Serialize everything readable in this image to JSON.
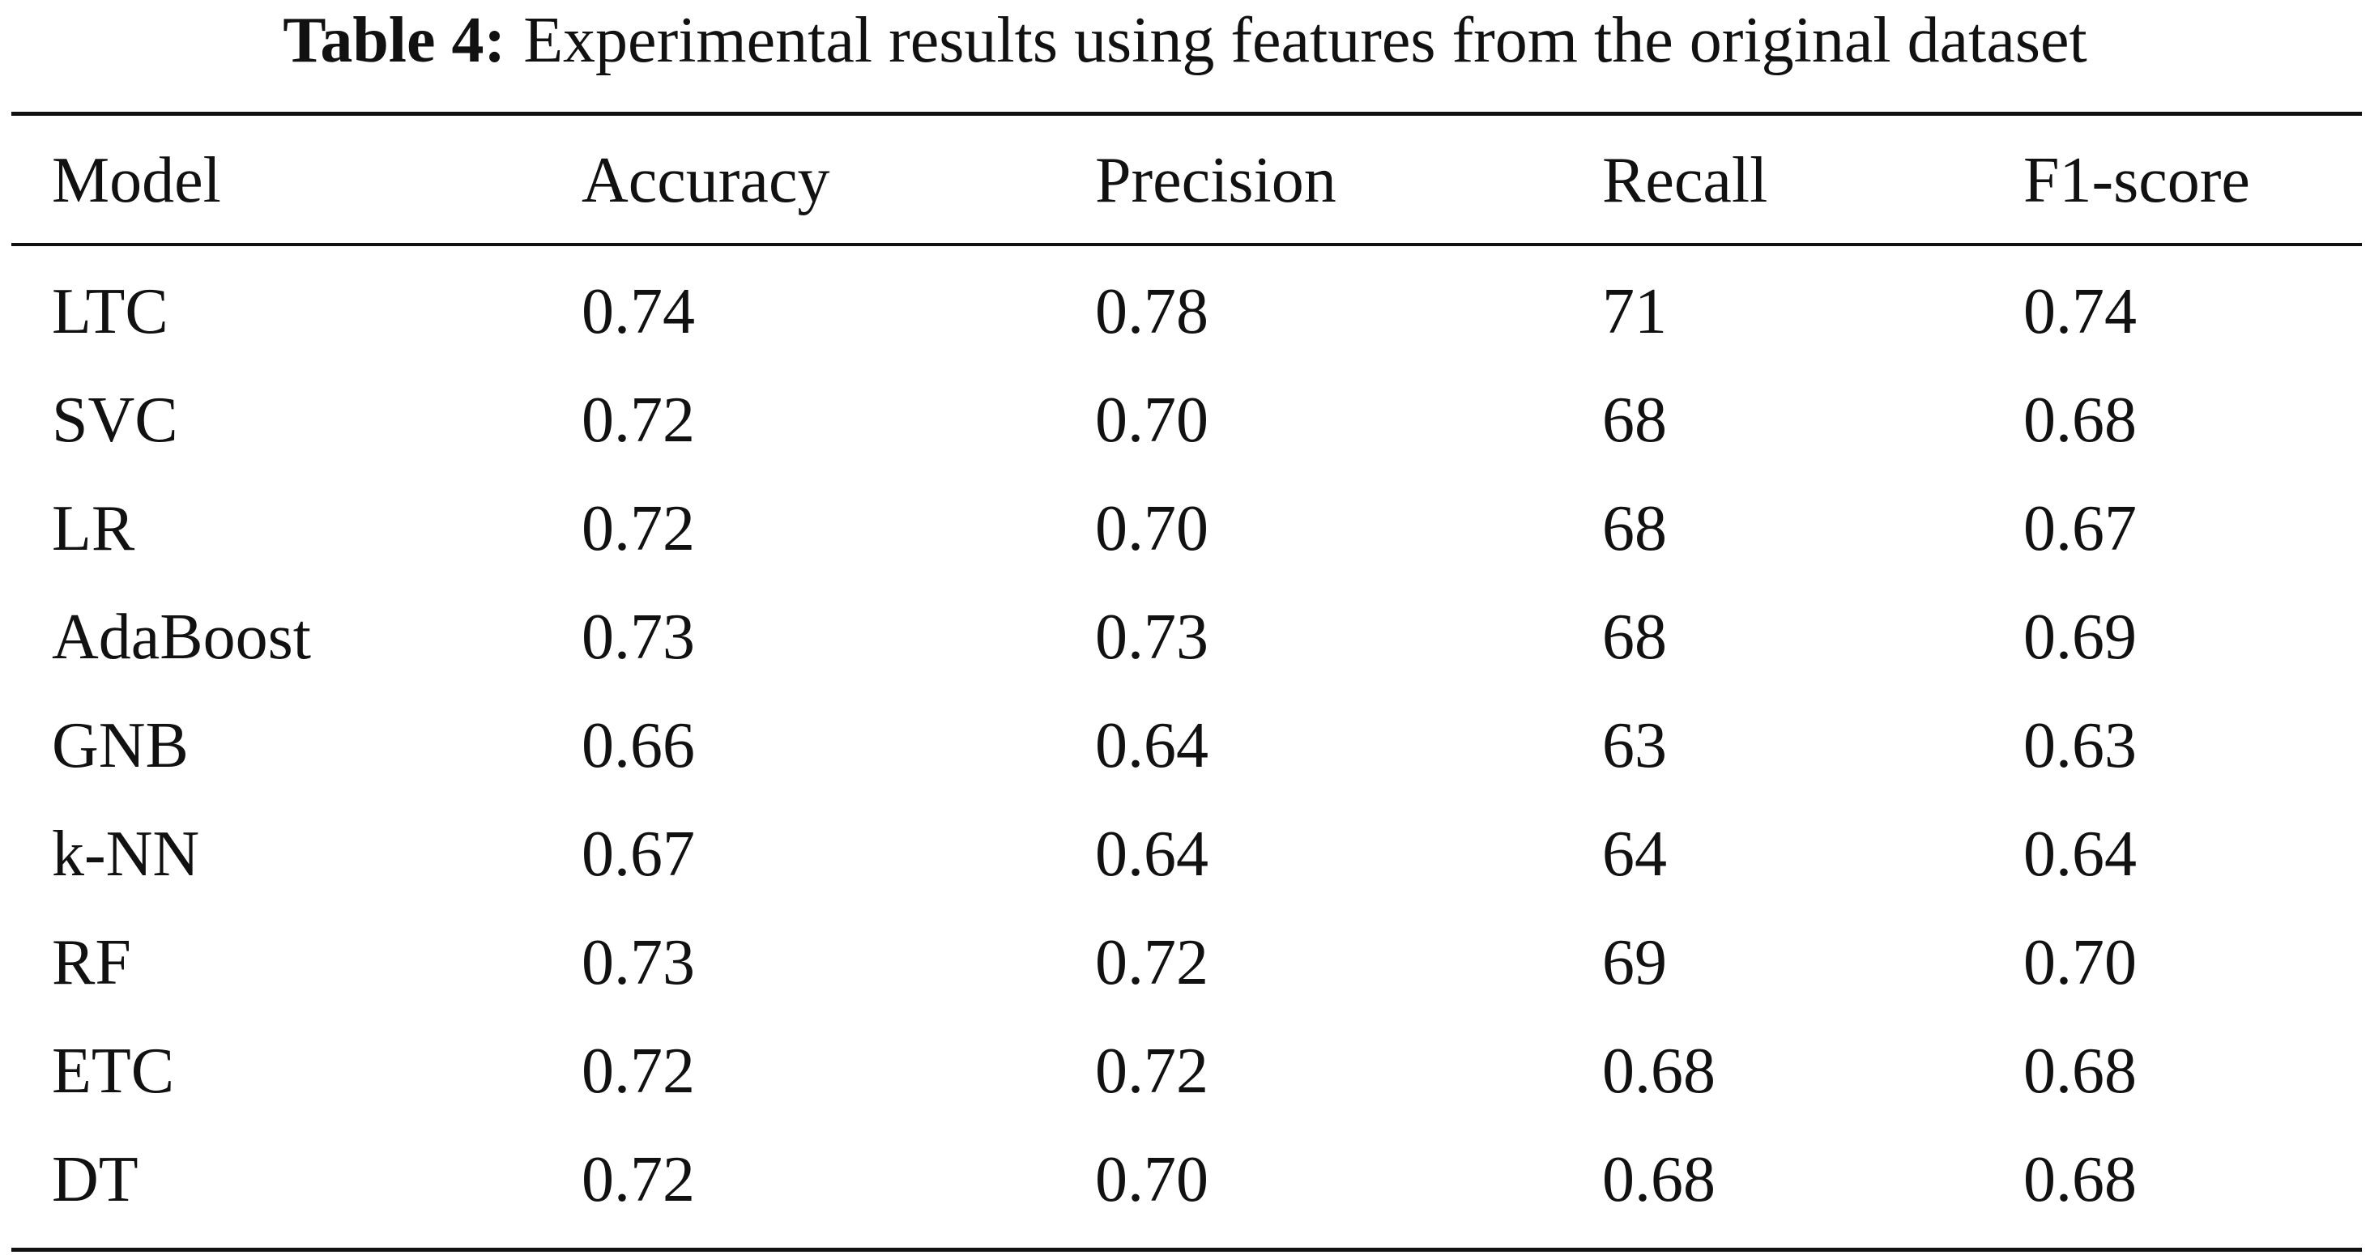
{
  "caption": {
    "label": "Table 4:",
    "text": "Experimental results using features from the original dataset"
  },
  "table": {
    "columns": [
      "Model",
      "Accuracy",
      "Precision",
      "Recall",
      "F1-score"
    ],
    "rows": [
      [
        "LTC",
        "0.74",
        "0.78",
        "71",
        "0.74"
      ],
      [
        "SVC",
        "0.72",
        "0.70",
        "68",
        "0.68"
      ],
      [
        "LR",
        "0.72",
        "0.70",
        "68",
        "0.67"
      ],
      [
        "AdaBoost",
        "0.73",
        "0.73",
        "68",
        "0.69"
      ],
      [
        "GNB",
        "0.66",
        "0.64",
        "63",
        "0.63"
      ],
      [
        "k-NN",
        "0.67",
        "0.64",
        "64",
        "0.64"
      ],
      [
        "RF",
        "0.73",
        "0.72",
        "69",
        "0.70"
      ],
      [
        "ETC",
        "0.72",
        "0.72",
        "0.68",
        "0.68"
      ],
      [
        "DT",
        "0.72",
        "0.70",
        "0.68",
        "0.68"
      ]
    ]
  }
}
